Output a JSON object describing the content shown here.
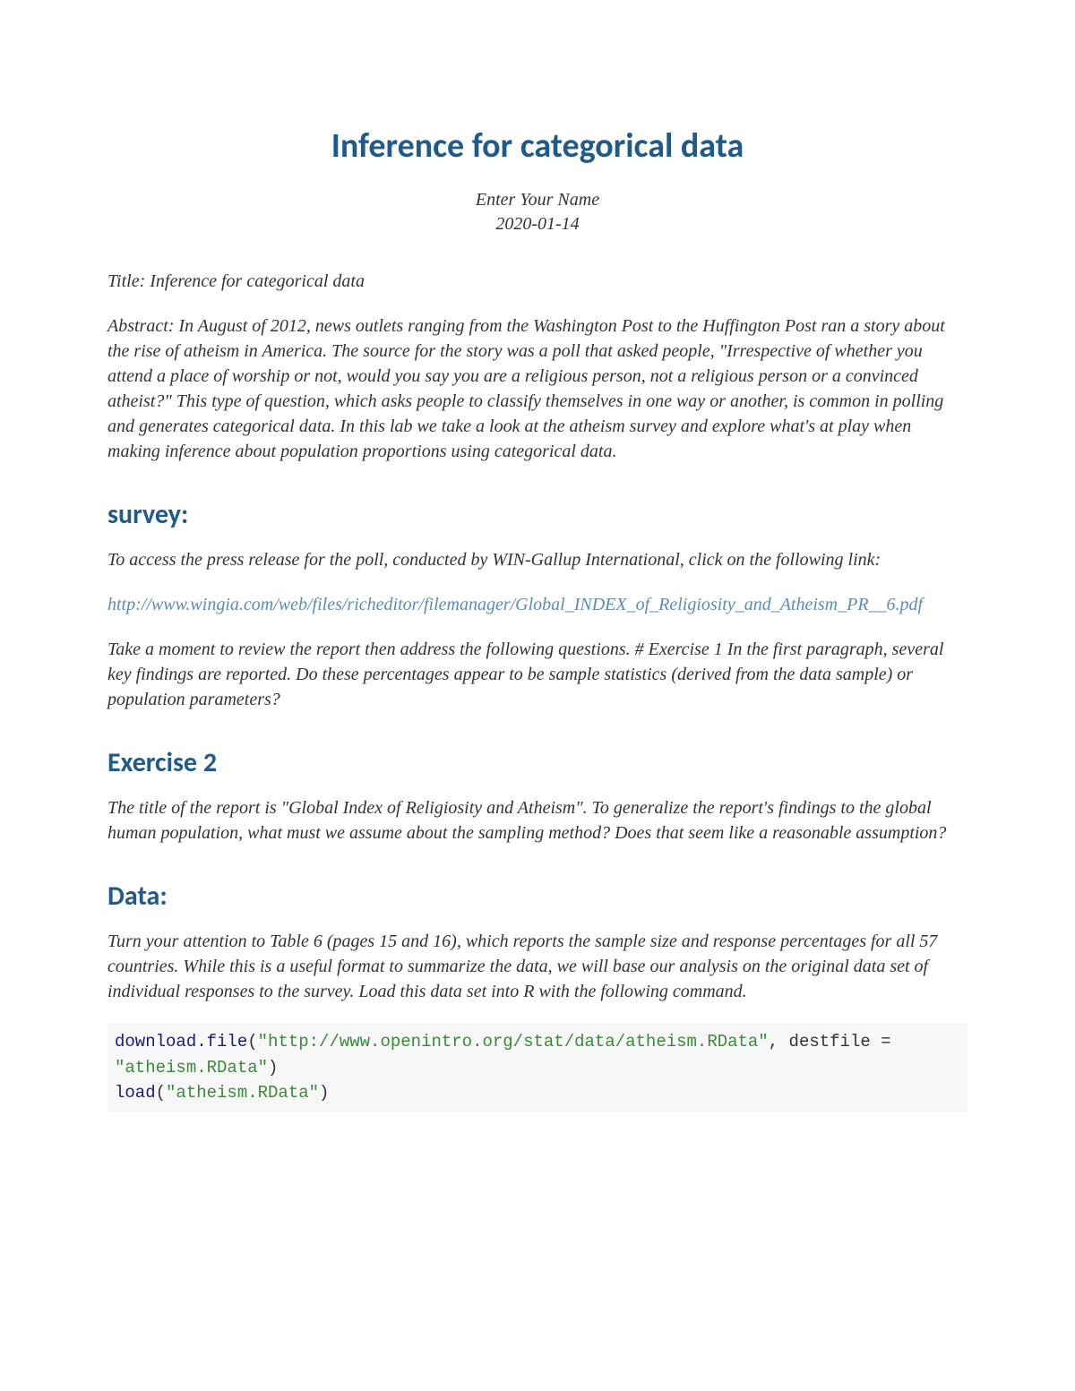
{
  "colors": {
    "heading": "#1f5a8a",
    "body": "#333333",
    "link": "#5b8bb5",
    "code_bg": "#f7f7f7",
    "code_fn": "#1a1a7a",
    "code_str": "#3a8a3a"
  },
  "typography": {
    "title_fontsize": 38,
    "heading_fontsize": 30,
    "body_fontsize": 20,
    "code_fontsize": 19,
    "body_font": "Georgia serif italic",
    "heading_font": "Calibri sans-serif bold"
  },
  "title": "Inference for categorical data",
  "author": "Enter Your Name",
  "date": "2020-01-14",
  "title_line": "Title: Inference for categorical data",
  "abstract": "Abstract: In August of 2012, news outlets ranging from the Washington Post to the Huffington Post ran a story about the rise of atheism in America. The source for the story was a poll that asked people, \"Irrespective of whether you attend a place of worship or not, would you say you are a religious person, not a religious person or a convinced atheist?\" This type of question, which asks people to classify themselves in one way or another, is common in polling and generates categorical data. In this lab we take a look at the atheism survey and explore what's at play when making inference about population proportions using categorical data.",
  "sections": {
    "survey": {
      "heading": "survey:",
      "intro": "To access the press release for the poll, conducted by WIN-Gallup International, click on the following link:",
      "link": "http://www.wingia.com/web/files/richeditor/filemanager/Global_INDEX_of_Religiosity_and_Atheism_PR__6.pdf",
      "followup": "Take a moment to review the report then address the following questions. # Exercise 1 In the first paragraph, several key findings are reported. Do these percentages appear to be sample statistics (derived from the data sample) or population parameters?"
    },
    "exercise2": {
      "heading": "Exercise 2",
      "body": "The title of the report is \"Global Index of Religiosity and Atheism\". To generalize the report's findings to the global human population, what must we assume about the sampling method? Does that seem like a reasonable assumption?"
    },
    "data": {
      "heading": "Data:",
      "body": "Turn your attention to Table 6 (pages 15 and 16), which reports the sample size and response percentages for all 57 countries. While this is a useful format to summarize the data, we will base our analysis on the original data set of individual responses to the survey. Load this data set into R with the following command."
    }
  },
  "code": {
    "fn1": "download.file",
    "open1": "(",
    "str1": "\"http://www.openintro.org/stat/data/atheism.RData\"",
    "sep1": ", ",
    "arg1": "destfile = ",
    "str2": "\"atheism.RData\"",
    "close1": ")",
    "nl": "\n",
    "fn2": "load",
    "open2": "(",
    "str3": "\"atheism.RData\"",
    "close2": ")"
  }
}
